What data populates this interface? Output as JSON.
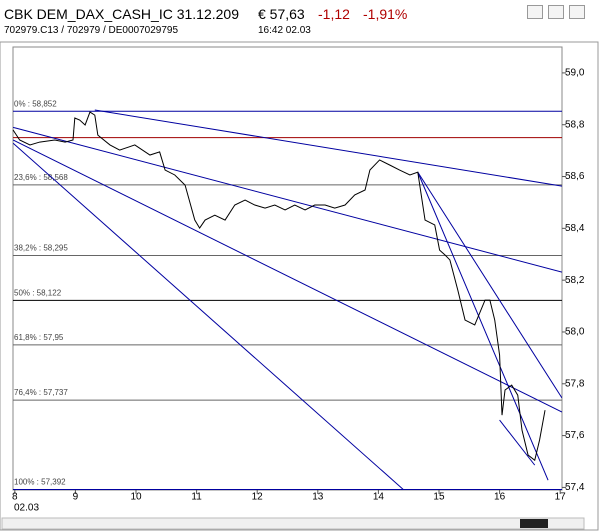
{
  "header": {
    "title": "CBK DEM_DAX_CASH_IC 31.12.209",
    "price": "€ 57,63",
    "change": "-1,12",
    "change_pct": "-1,91%",
    "ids": "702979.C13 / 702979 / DE0007029795",
    "time": "16:42  02.03"
  },
  "chart_data": {
    "type": "line",
    "x": [
      7.97,
      8.08,
      8.25,
      8.41,
      8.66,
      8.83,
      8.96,
      8.99,
      9.07,
      9.16,
      9.24,
      9.32,
      9.37,
      9.57,
      9.73,
      9.98,
      10.23,
      10.39,
      10.48,
      10.64,
      10.81,
      10.97,
      11.05,
      11.14,
      11.3,
      11.47,
      11.63,
      11.8,
      11.96,
      12.13,
      12.29,
      12.46,
      12.62,
      12.79,
      12.95,
      13.12,
      13.28,
      13.45,
      13.61,
      13.78,
      13.86,
      14.02,
      14.19,
      14.35,
      14.52,
      14.65,
      14.77,
      14.93,
      15.01,
      15.1,
      15.18,
      15.31,
      15.43,
      15.59,
      15.76,
      15.84,
      15.92,
      16.0,
      16.04,
      16.09,
      16.2,
      16.3,
      16.37,
      16.47,
      16.58,
      16.66,
      16.75
    ],
    "series": [
      {
        "color": "#000000",
        "values": [
          58.78,
          58.741,
          58.722,
          58.733,
          58.741,
          58.733,
          58.741,
          58.826,
          58.818,
          58.799,
          58.849,
          58.837,
          58.76,
          58.722,
          58.702,
          58.722,
          58.683,
          58.695,
          58.625,
          58.606,
          58.567,
          58.432,
          58.401,
          58.432,
          58.451,
          58.432,
          58.49,
          58.509,
          58.49,
          58.478,
          58.49,
          58.471,
          58.49,
          58.471,
          58.49,
          58.49,
          58.478,
          58.49,
          58.529,
          58.548,
          58.625,
          58.664,
          58.644,
          58.625,
          58.606,
          58.617,
          58.432,
          58.413,
          58.316,
          58.297,
          58.278,
          58.162,
          58.046,
          58.027,
          58.123,
          58.123,
          58.046,
          57.911,
          57.679,
          57.776,
          57.795,
          57.756,
          57.621,
          57.525,
          57.505,
          57.583,
          57.698
        ]
      }
    ],
    "xlim": [
      7.97,
      17.03
    ],
    "ylim": [
      57.39,
      59.1
    ],
    "xticks": [
      8,
      9,
      10,
      11,
      12,
      13,
      14,
      15,
      16,
      17
    ],
    "x_sublabel": "02.03",
    "yticks": [
      {
        "value": 59.0,
        "label": "59,0"
      },
      {
        "value": 58.8,
        "label": "58,8"
      },
      {
        "value": 58.6,
        "label": "58,6"
      },
      {
        "value": 58.4,
        "label": "58,4"
      },
      {
        "value": 58.2,
        "label": "58,2"
      },
      {
        "value": 58.0,
        "label": "58,0"
      },
      {
        "value": 57.8,
        "label": "57,8"
      },
      {
        "value": 57.6,
        "label": "57,6"
      },
      {
        "value": 57.4,
        "label": "57,4"
      }
    ],
    "fib_levels": [
      {
        "value": 58.852,
        "label": "0% : 58,852",
        "color": "#0000a0"
      },
      {
        "value": 58.568,
        "label": "23,6% : 58,568",
        "color": "#666666"
      },
      {
        "value": 58.295,
        "label": "38,2% : 58,295",
        "color": "#666666"
      },
      {
        "value": 58.122,
        "label": "50% : 58,122",
        "color": "#000000"
      },
      {
        "value": 57.95,
        "label": "61,8% : 57,95",
        "color": "#666666"
      },
      {
        "value": 57.737,
        "label": "76,4% : 57,737",
        "color": "#666666"
      },
      {
        "value": 57.392,
        "label": "100% : 57,392",
        "color": "#0000a0"
      }
    ],
    "trend_lines": [
      {
        "x": [
          7.97,
          17.03
        ],
        "values": [
          58.75,
          58.75
        ],
        "color": "#a00000"
      },
      {
        "x": [
          9.32,
          17.03
        ],
        "values": [
          58.857,
          58.563
        ],
        "color": "#0000a0"
      },
      {
        "x": [
          7.97,
          17.03
        ],
        "values": [
          58.79,
          58.231
        ],
        "color": "#0000a0"
      },
      {
        "x": [
          7.97,
          17.03
        ],
        "values": [
          58.741,
          57.691
        ],
        "color": "#0000a0"
      },
      {
        "x": [
          7.97,
          14.42
        ],
        "values": [
          58.729,
          57.39
        ],
        "color": "#0000a0"
      },
      {
        "x": [
          14.65,
          17.03
        ],
        "values": [
          58.617,
          57.745
        ],
        "color": "#0000a0"
      },
      {
        "x": [
          14.65,
          16.8
        ],
        "values": [
          58.617,
          57.428
        ],
        "color": "#0000a0"
      },
      {
        "x": [
          16.0,
          16.58
        ],
        "values": [
          57.66,
          57.486
        ],
        "color": "#0000a0"
      }
    ]
  }
}
